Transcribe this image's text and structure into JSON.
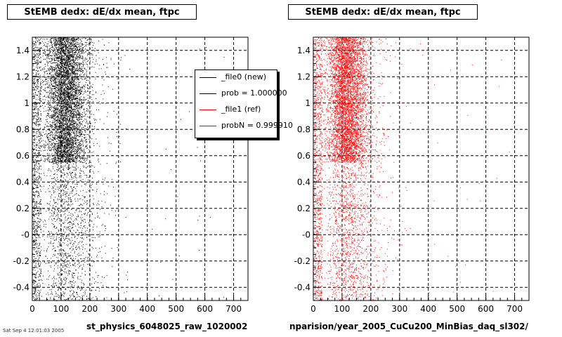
{
  "chart_data": [
    {
      "type": "scatter",
      "title": "StEMB dedx: dE/dx mean, ftpc",
      "xlabel": "st_physics_6048025_raw_1020002",
      "xlim": [
        0,
        750
      ],
      "ylim": [
        -0.5,
        1.5
      ],
      "x_ticks": [
        "0",
        "100",
        "200",
        "300",
        "400",
        "500",
        "600",
        "700"
      ],
      "y_ticks": [
        "-0.4",
        "-0.2",
        "-0",
        "0.2",
        "0.4",
        "0.6",
        "0.8",
        "1",
        "1.2",
        "1.4"
      ],
      "grid": true,
      "marker_color": "#000000",
      "distribution": {
        "x_center": 115,
        "x_spread": 35,
        "dense_y_range": [
          0.55,
          1.5
        ],
        "sparse_y_range": [
          -0.5,
          0.55
        ],
        "tail_x_max": 340
      }
    },
    {
      "type": "scatter",
      "title": "StEMB dedx: dE/dx mean, ftpc",
      "xlabel": "nparision/year_2005_CuCu200_MinBias_daq_sl302/",
      "xlim": [
        0,
        750
      ],
      "ylim": [
        -0.5,
        1.5
      ],
      "x_ticks": [
        "0",
        "100",
        "200",
        "300",
        "400",
        "500",
        "600",
        "700"
      ],
      "y_ticks": [
        "-0.4",
        "-0.2",
        "-0",
        "0.2",
        "0.4",
        "0.6",
        "0.8",
        "1",
        "1.2",
        "1.4"
      ],
      "grid": true,
      "marker_color": "#ff0000",
      "distribution": {
        "x_center": 115,
        "x_spread": 35,
        "dense_y_range": [
          0.55,
          1.5
        ],
        "sparse_y_range": [
          -0.5,
          0.55
        ],
        "tail_x_max": 340
      }
    }
  ],
  "legend": {
    "placement": "top-right of left panel",
    "entries": [
      {
        "label": "_file0 (new)",
        "color": "#000000"
      },
      {
        "label": "prob = 1.000000",
        "color": "#000000"
      },
      {
        "label": "_file1 (ref)",
        "color": "#ff0000"
      },
      {
        "label": "probN = 0.999910",
        "color": "#ff0000"
      }
    ]
  },
  "footer_note": "Sat Sep  4 12:01:03 2005"
}
